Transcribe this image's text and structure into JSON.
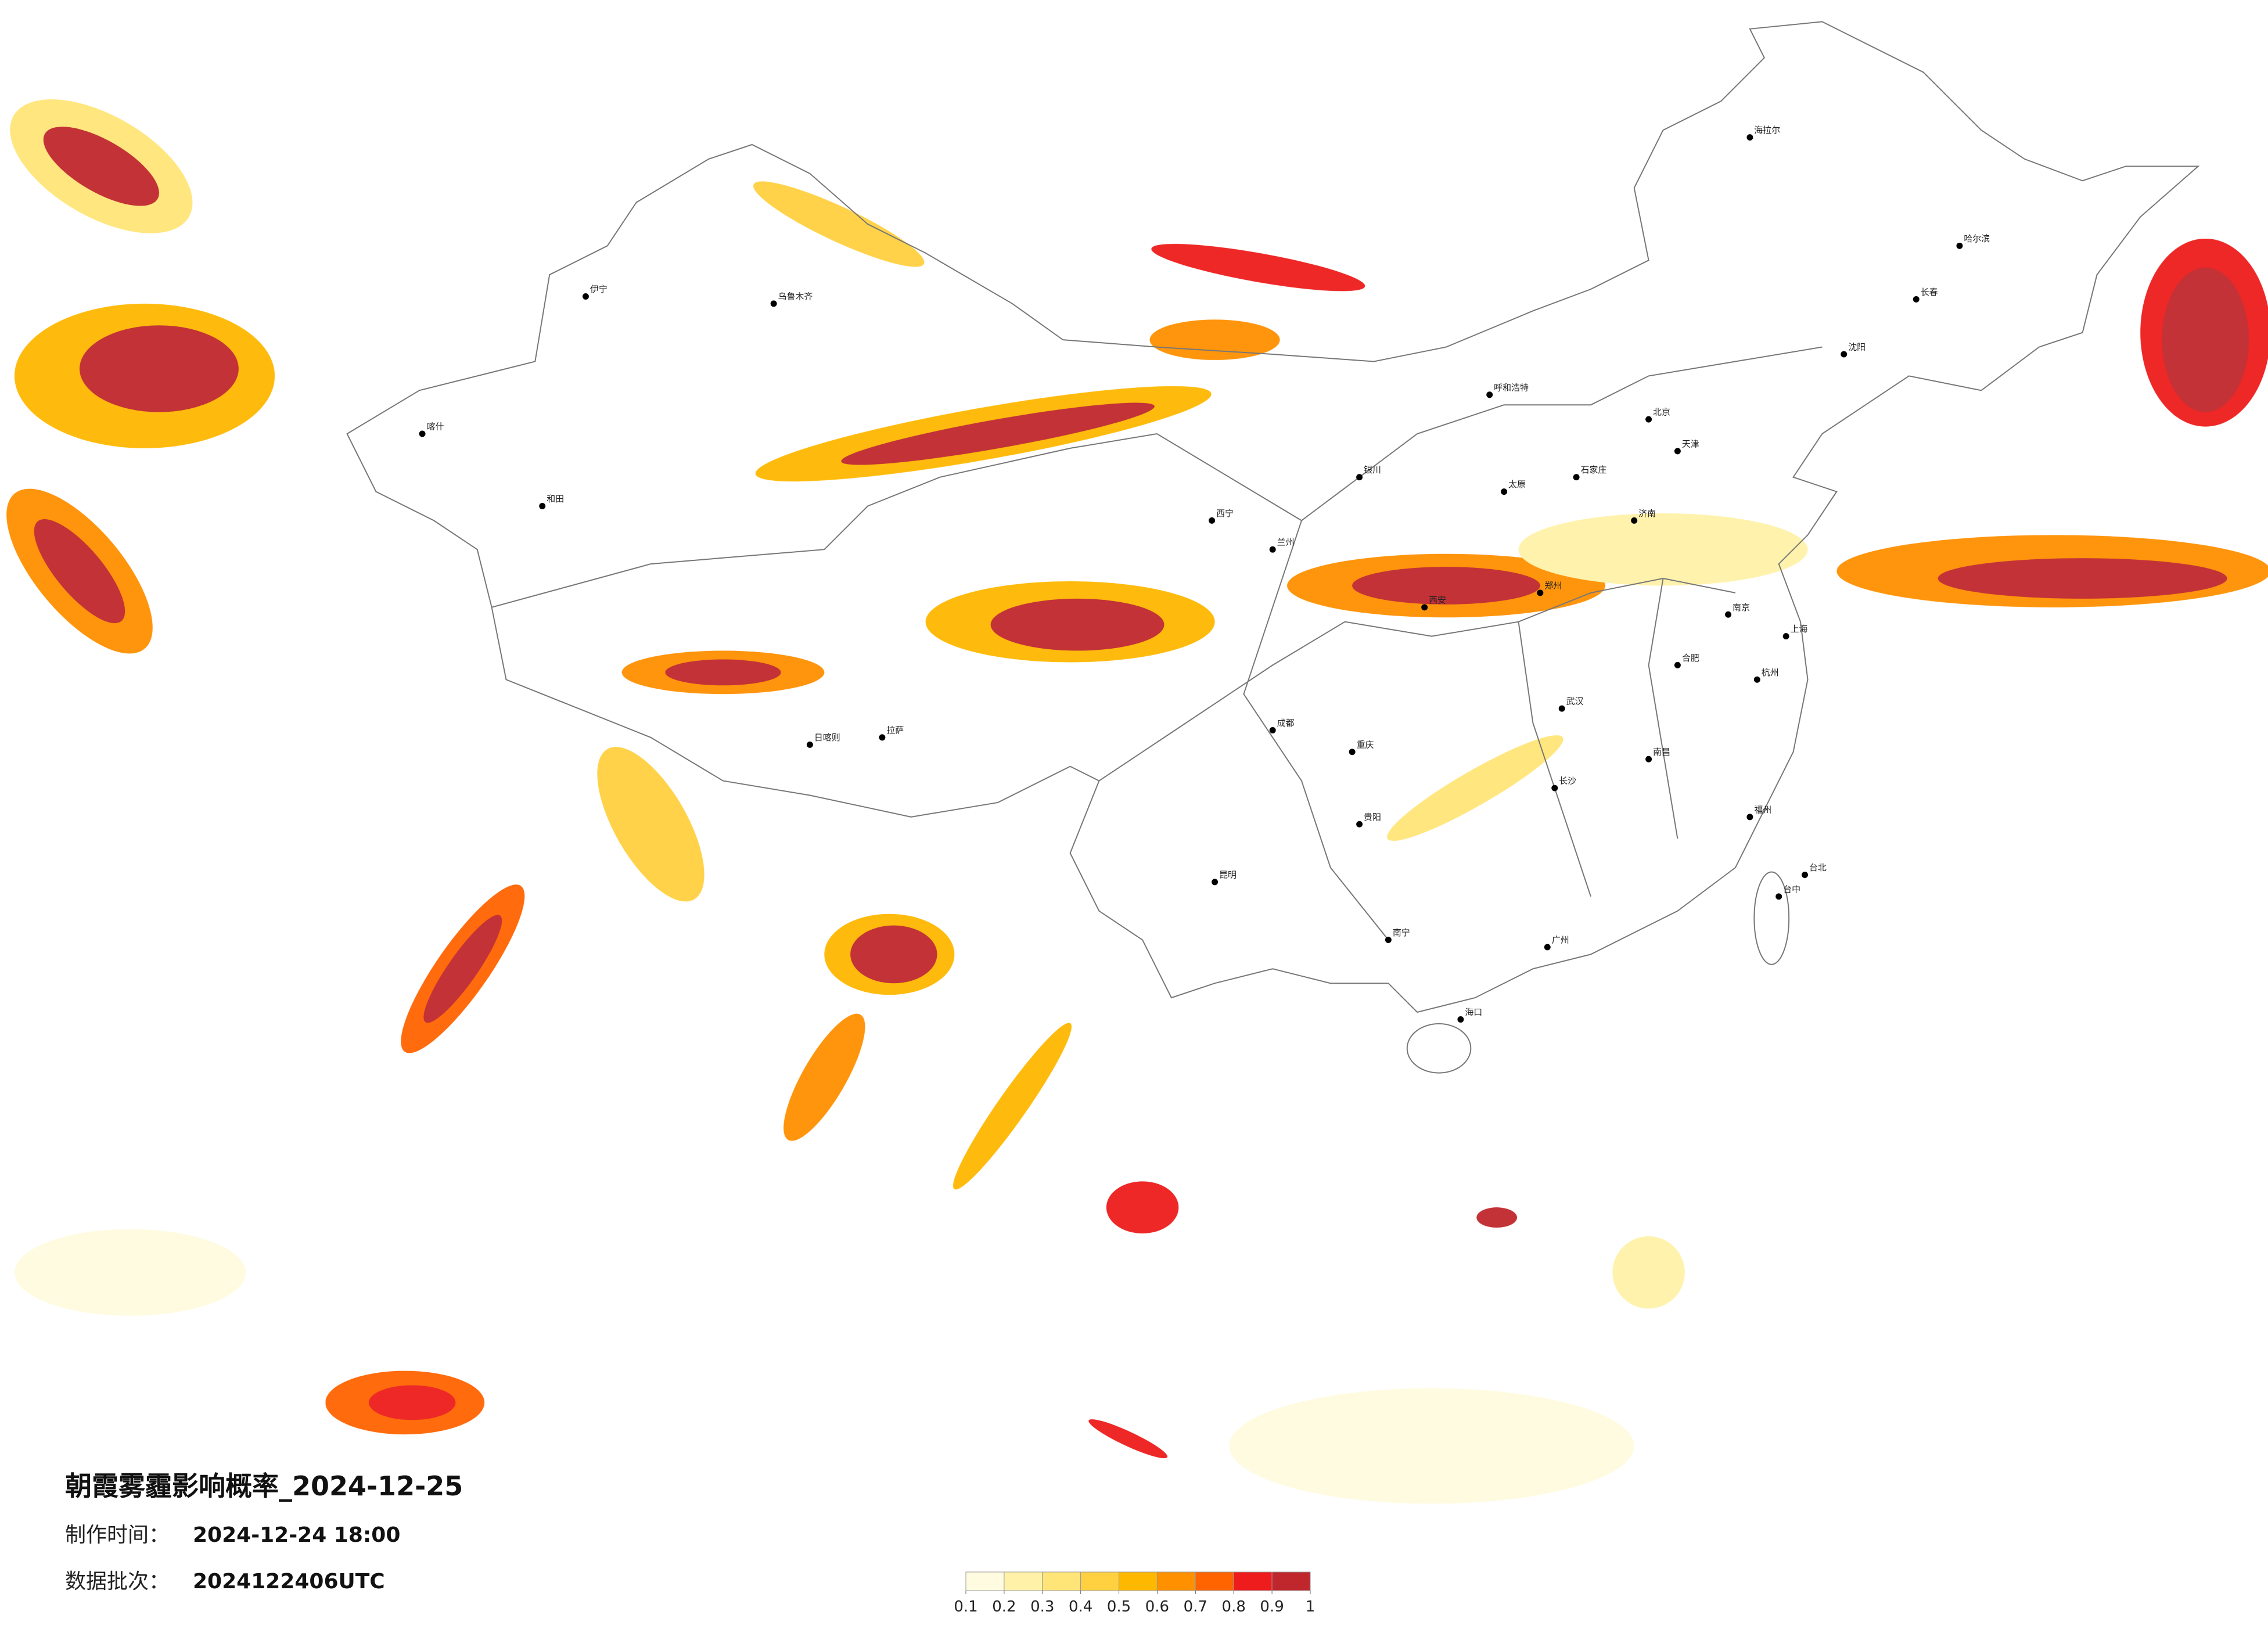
{
  "header": {
    "title": "朝霞雾霾影响概率_2024-12-25",
    "made_label": "制作时间：",
    "made_value": "2024-12-24 18:00",
    "batch_label": "数据批次：",
    "batch_value": "2024122406UTC"
  },
  "legend": {
    "ticks": [
      0.1,
      0.2,
      0.3,
      0.4,
      0.5,
      0.6,
      0.7,
      0.8,
      0.9,
      1
    ],
    "colors": [
      "#fffbe0",
      "#fff2a8",
      "#ffe578",
      "#ffd040",
      "#ffb800",
      "#ff9000",
      "#ff6400",
      "#ee1c1c",
      "#c0272d"
    ]
  },
  "cities": [
    "北京",
    "天津",
    "上海",
    "广州",
    "成都",
    "重庆",
    "武汉",
    "西安",
    "兰州",
    "乌鲁木齐",
    "拉萨",
    "哈尔滨",
    "长春",
    "沈阳",
    "呼和浩特",
    "银川",
    "西宁",
    "郑州",
    "济南",
    "南京",
    "杭州",
    "福州",
    "南昌",
    "长沙",
    "贵阳",
    "昆明",
    "南宁",
    "海口",
    "台北",
    "太原",
    "石家庄",
    "合肥",
    "喀什",
    "和田",
    "伊宁",
    "日喀则",
    "海拉尔",
    "台中"
  ]
}
